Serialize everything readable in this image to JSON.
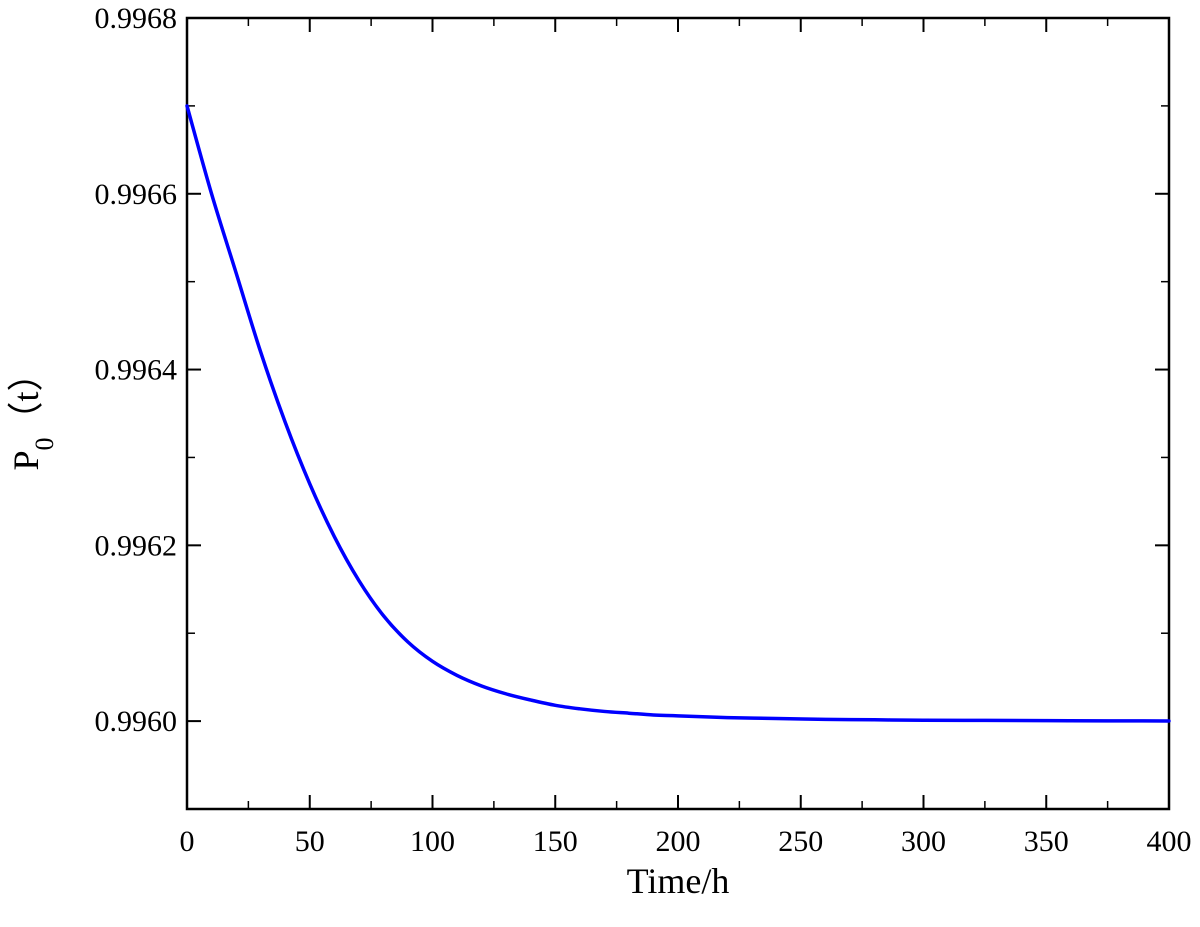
{
  "chart_data": {
    "type": "line",
    "xlabel": "Time/h",
    "ylabel_main": "P",
    "ylabel_sub": "0",
    "ylabel_rest": "（t）",
    "xlim": [
      0,
      400
    ],
    "ylim": [
      0.9959,
      0.9968
    ],
    "x_ticks": [
      0,
      50,
      100,
      150,
      200,
      250,
      300,
      350,
      400
    ],
    "x_tick_labels": [
      "0",
      "50",
      "100",
      "150",
      "200",
      "250",
      "300",
      "350",
      "400"
    ],
    "y_ticks": [
      0.996,
      0.9962,
      0.9964,
      0.9966,
      0.9968
    ],
    "y_tick_labels": [
      "0.9960",
      "0.9962",
      "0.9964",
      "0.9966",
      "0.9968"
    ],
    "grid": false,
    "series": [
      {
        "color": "#0000ff",
        "x": [
          0,
          10,
          20,
          30,
          40,
          50,
          60,
          70,
          80,
          90,
          100,
          110,
          120,
          130,
          140,
          150,
          160,
          170,
          180,
          190,
          200,
          220,
          240,
          260,
          280,
          300,
          325,
          350,
          375,
          400
        ],
        "y": [
          0.9967,
          0.9966,
          0.99651,
          0.99642,
          0.99634,
          0.99627,
          0.99621,
          0.99616,
          0.99612,
          0.99609,
          0.996068,
          0.996052,
          0.99604,
          0.996031,
          0.996024,
          0.996018,
          0.996014,
          0.996011,
          0.996009,
          0.996007,
          0.996006,
          0.996004,
          0.996003,
          0.996002,
          0.9960015,
          0.996001,
          0.9960008,
          0.9960005,
          0.9960003,
          0.9960002
        ]
      }
    ]
  }
}
